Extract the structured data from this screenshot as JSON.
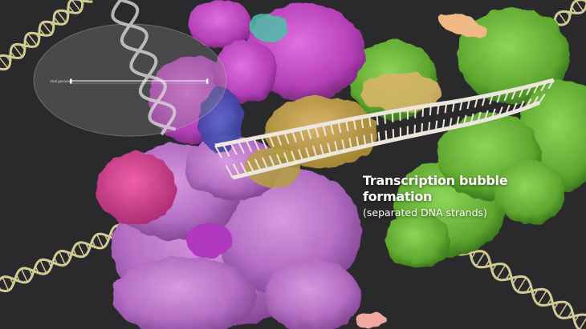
{
  "minimap": {
    "track_label": "Viral genome",
    "position_fraction": 0.0
  },
  "caption": {
    "title_line1": "Transcription bubble",
    "title_line2": "formation",
    "subtitle": "(separated DNA strands)"
  },
  "colors": {
    "background": "#2a2a2c",
    "dna_gold": "#e6dda0",
    "polymerase_magenta": "#c93fc4",
    "polymerase_lilac": "#c37ad0",
    "factor_green": "#6fb83a",
    "dna_strand": "#ece6de"
  }
}
